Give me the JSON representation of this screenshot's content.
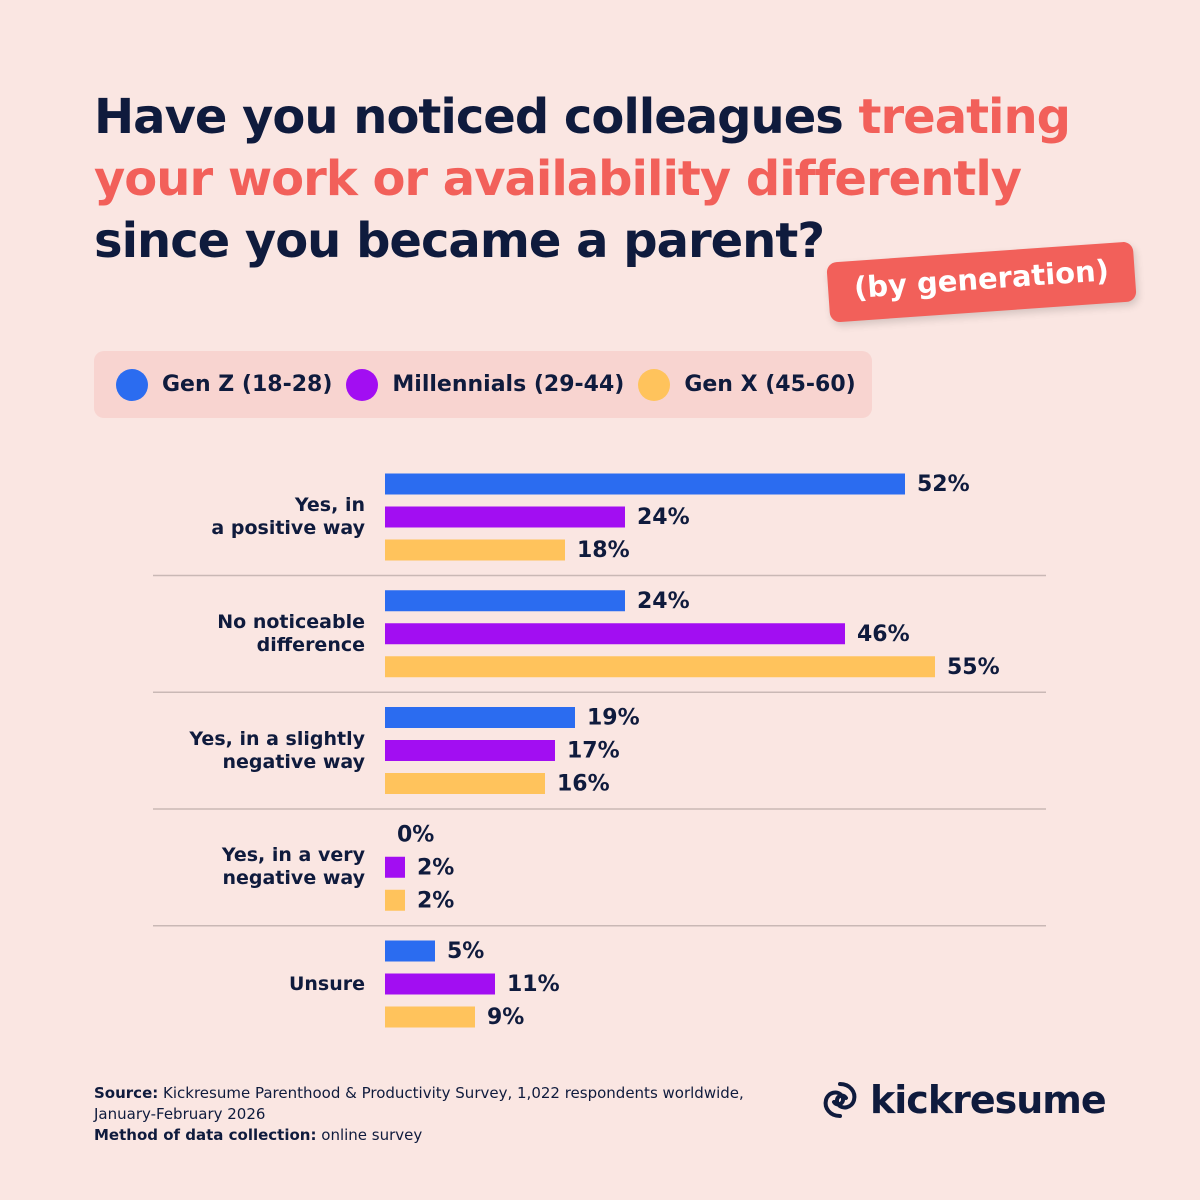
{
  "chart_data": {
    "type": "bar",
    "title_parts": [
      {
        "text": "Have you noticed colleagues",
        "color": "#0f1b3d"
      },
      {
        "text": "treating",
        "color": "#f2605a"
      },
      {
        "text": "your work or availability differently",
        "color": "#f2605a"
      },
      {
        "text": "since you became a parent?",
        "color": "#0f1b3d"
      }
    ],
    "subtitle": "(by generation)",
    "categories": [
      "Yes, in\na positive way",
      "No noticeable\ndifference",
      "Yes, in a slightly\nnegative way",
      "Yes, in a very\nnegative way",
      "Unsure"
    ],
    "series": [
      {
        "name": "Gen Z (18-28)",
        "color": "#2b6cf0",
        "values": [
          52,
          24,
          19,
          0,
          5
        ],
        "value_labels": [
          "52%",
          "24%",
          "19%",
          "0%",
          "5%"
        ]
      },
      {
        "name": "Millennials (29-44)",
        "color": "#a20ef2",
        "values": [
          24,
          46,
          17,
          2,
          11
        ],
        "value_labels": [
          "24%",
          "46%",
          "17%",
          "2%",
          "11%"
        ]
      },
      {
        "name": "Gen X (45-60)",
        "color": "#ffc35c",
        "values": [
          18,
          55,
          16,
          2,
          9
        ],
        "value_labels": [
          "18%",
          "55%",
          "16%",
          "2%",
          "9%"
        ]
      }
    ],
    "source_label": "Source:",
    "source": "Kickresume Parenthood & Productivity Survey, 1,022 respondents worldwide, January-February 2026",
    "method_label": "Method of data collection:",
    "method": "online survey",
    "brand": "kickresume"
  }
}
